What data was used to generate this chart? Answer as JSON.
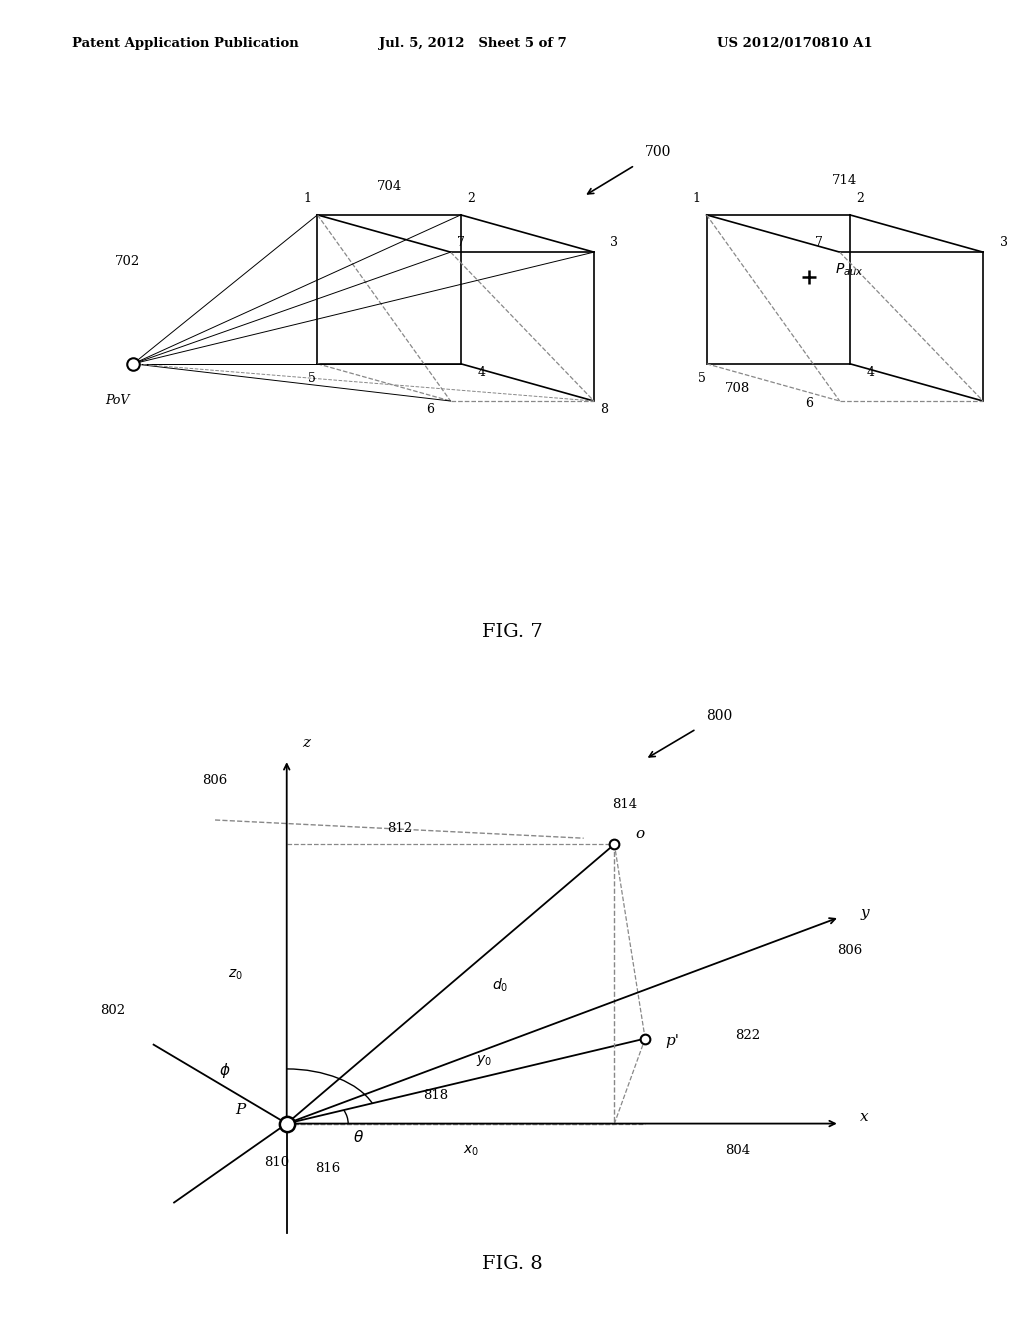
{
  "header_left": "Patent Application Publication",
  "header_mid": "Jul. 5, 2012   Sheet 5 of 7",
  "header_right": "US 2012/0170810 A1",
  "fig7_label": "FIG. 7",
  "fig8_label": "FIG. 8",
  "bg_color": "#ffffff",
  "line_color": "#000000",
  "dashed_color": "#888888"
}
